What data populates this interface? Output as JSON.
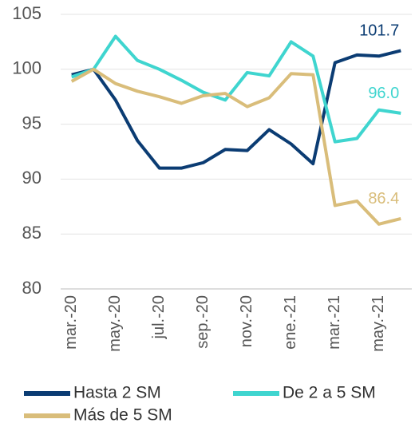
{
  "chart_data": {
    "type": "line",
    "categories": [
      "mar.-20",
      null,
      "may.-20",
      null,
      "jul.-20",
      null,
      "sep.-20",
      null,
      "nov.-20",
      null,
      "ene.-21",
      null,
      "mar.-21",
      null,
      "may.-21",
      null
    ],
    "series": [
      {
        "name": "Hasta 2 SM",
        "color": "#0b3c73",
        "values": [
          99.5,
          100,
          97.2,
          93.5,
          91,
          91,
          91.5,
          92.7,
          92.6,
          94.5,
          93.2,
          91.4,
          100.6,
          101.3,
          101.2,
          101.7
        ],
        "value_labels": [
          null,
          null,
          null,
          null,
          null,
          null,
          null,
          null,
          null,
          null,
          null,
          null,
          null,
          null,
          null,
          "101.7"
        ]
      },
      {
        "name": "De 2 a 5 SM",
        "color": "#3fd5cf",
        "values": [
          99.3,
          100,
          103,
          100.8,
          100,
          99,
          97.9,
          97.2,
          99.7,
          99.4,
          102.5,
          101.2,
          93.4,
          93.7,
          96.3,
          96
        ],
        "value_labels": [
          null,
          null,
          null,
          null,
          null,
          null,
          null,
          null,
          null,
          null,
          null,
          null,
          null,
          null,
          null,
          "96.0"
        ]
      },
      {
        "name": "Más de 5 SM",
        "color": "#d9bd7a",
        "values": [
          98.9,
          100,
          98.7,
          98,
          97.5,
          96.9,
          97.6,
          97.8,
          96.6,
          97.4,
          99.6,
          99.5,
          87.6,
          88,
          85.9,
          86.4
        ],
        "value_labels": [
          null,
          null,
          null,
          null,
          null,
          null,
          null,
          null,
          null,
          null,
          null,
          null,
          null,
          null,
          null,
          "86.4"
        ]
      }
    ],
    "ylim": [
      80,
      105
    ],
    "yticks": [
      80,
      85,
      90,
      95,
      100,
      105
    ],
    "grid": true
  }
}
